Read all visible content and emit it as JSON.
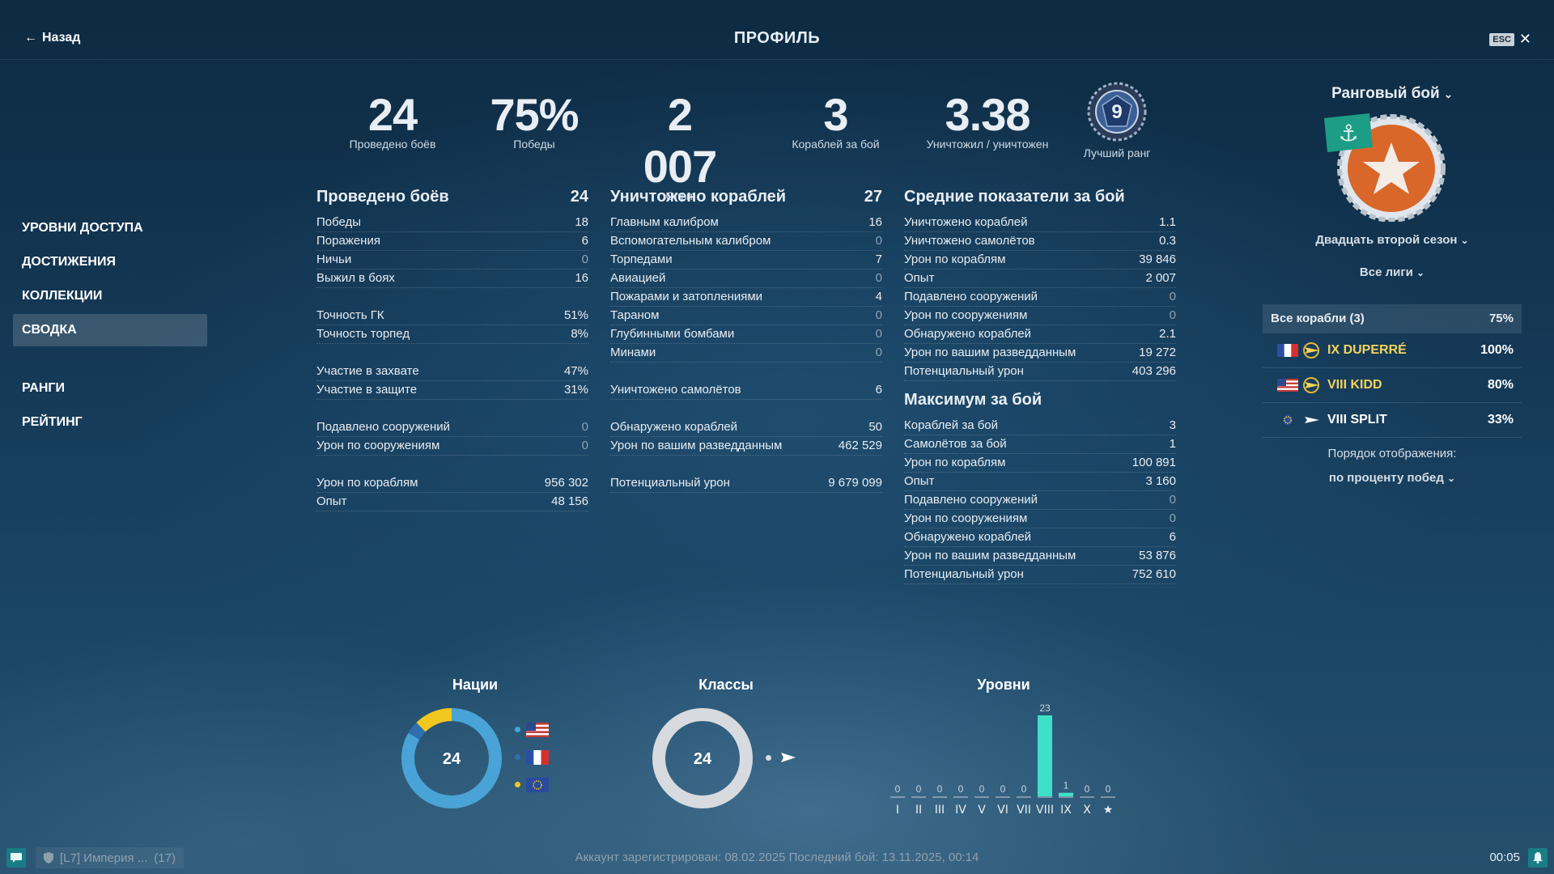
{
  "header": {
    "back_label": "Назад",
    "title": "ПРОФИЛЬ",
    "esc_label": "ESC"
  },
  "sidebar": {
    "items": [
      {
        "label": "УРОВНИ ДОСТУПА"
      },
      {
        "label": "ДОСТИЖЕНИЯ"
      },
      {
        "label": "КОЛЛЕКЦИИ"
      },
      {
        "label": "СВОДКА",
        "active": true
      },
      {
        "label": "РАНГИ"
      },
      {
        "label": "РЕЙТИНГ"
      }
    ]
  },
  "summary": [
    {
      "value": "24",
      "label": "Проведено боёв"
    },
    {
      "value": "75%",
      "label": "Победы"
    },
    {
      "value": "2 007",
      "label": "Опыт"
    },
    {
      "value": "3",
      "label": "Кораблей за бой"
    },
    {
      "value": "3.38",
      "label": "Уничтожил / уничтожен"
    }
  ],
  "best_rank": {
    "value": "9",
    "label": "Лучший ранг"
  },
  "col1": {
    "title": "Проведено боёв",
    "total": "24",
    "groups": [
      [
        [
          "Победы",
          "18"
        ],
        [
          "Поражения",
          "6"
        ],
        [
          "Ничьи",
          "0"
        ],
        [
          "Выжил в боях",
          "16"
        ]
      ],
      [
        [
          "Точность ГК",
          "51%"
        ],
        [
          "Точность торпед",
          "8%"
        ]
      ],
      [
        [
          "Участие в захвате",
          "47%"
        ],
        [
          "Участие в защите",
          "31%"
        ]
      ],
      [
        [
          "Подавлено сооружений",
          "0"
        ],
        [
          "Урон по сооружениям",
          "0"
        ]
      ],
      [
        [
          "Урон по кораблям",
          "956 302"
        ],
        [
          "Опыт",
          "48 156"
        ]
      ]
    ]
  },
  "col2": {
    "title": "Уничтожено кораблей",
    "total": "27",
    "groups": [
      [
        [
          "Главным калибром",
          "16"
        ],
        [
          "Вспомогательным калибром",
          "0"
        ],
        [
          "Торпедами",
          "7"
        ],
        [
          "Авиацией",
          "0"
        ],
        [
          "Пожарами и затоплениями",
          "4"
        ],
        [
          "Тараном",
          "0"
        ],
        [
          "Глубинными бомбами",
          "0"
        ],
        [
          "Минами",
          "0"
        ]
      ],
      [
        [
          "Уничтожено самолётов",
          "6"
        ]
      ],
      [
        [
          "Обнаружено кораблей",
          "50"
        ],
        [
          "Урон по вашим разведданным",
          "462 529"
        ]
      ],
      [
        [
          "Потенциальный урон",
          "9 679 099"
        ]
      ]
    ]
  },
  "col3": {
    "title": "Средние показатели за бой",
    "rows": [
      [
        "Уничтожено кораблей",
        "1.1"
      ],
      [
        "Уничтожено самолётов",
        "0.3"
      ],
      [
        "Урон по кораблям",
        "39 846"
      ],
      [
        "Опыт",
        "2 007"
      ],
      [
        "Подавлено сооружений",
        "0"
      ],
      [
        "Урон по сооружениям",
        "0"
      ],
      [
        "Обнаружено кораблей",
        "2.1"
      ],
      [
        "Урон по вашим разведданным",
        "19 272"
      ],
      [
        "Потенциальный урон",
        "403 296"
      ]
    ],
    "max_title": "Максимум за бой",
    "max_rows": [
      [
        "Кораблей за бой",
        "3"
      ],
      [
        "Самолётов за бой",
        "1"
      ],
      [
        "Урон по кораблям",
        "100 891"
      ],
      [
        "Опыт",
        "3 160"
      ],
      [
        "Подавлено сооружений",
        "0"
      ],
      [
        "Урон по сооружениям",
        "0"
      ],
      [
        "Обнаружено кораблей",
        "6"
      ],
      [
        "Урон по вашим разведданным",
        "53 876"
      ],
      [
        "Потенциальный урон",
        "752 610"
      ]
    ]
  },
  "right_panel": {
    "mode": "Ранговый бой",
    "season": "Двадцать второй сезон",
    "leagues": "Все лиги",
    "all_ships": {
      "label": "Все корабли (3)",
      "pct": "75%"
    },
    "ships": [
      {
        "name": "IX DUPERRÉ",
        "pct": "100%",
        "nation": "france",
        "name_color": "#f2d35a"
      },
      {
        "name": "VIII KIDD",
        "pct": "80%",
        "nation": "usa",
        "name_color": "#f2d35a"
      },
      {
        "name": "VIII SPLIT",
        "pct": "33%",
        "nation": "europe",
        "name_color": "#ffffff"
      }
    ],
    "order_label": "Порядок отображения:",
    "order_value": "по проценту побед"
  },
  "charts": {
    "nations_title": "Нации",
    "classes_title": "Классы",
    "levels_title": "Уровни",
    "nations_total": "24",
    "classes_total": "24"
  },
  "chart_data": [
    {
      "type": "pie",
      "title": "Нации",
      "center_label": "24",
      "categories": [
        "usa",
        "france",
        "europe"
      ],
      "values": [
        20,
        1,
        3
      ],
      "colors": [
        "#49a3d6",
        "#2f6fb0",
        "#f2c81e"
      ]
    },
    {
      "type": "pie",
      "title": "Классы",
      "center_label": "24",
      "categories": [
        "destroyer"
      ],
      "values": [
        24
      ],
      "colors": [
        "#d7dade"
      ]
    },
    {
      "type": "bar",
      "title": "Уровни",
      "categories": [
        "I",
        "II",
        "III",
        "IV",
        "V",
        "VI",
        "VII",
        "VIII",
        "IX",
        "X",
        "★"
      ],
      "values": [
        0,
        0,
        0,
        0,
        0,
        0,
        0,
        23,
        1,
        0,
        0
      ],
      "bar_color": "#3fe0c9"
    }
  ],
  "footer": {
    "clan": "[L7] Империя ...",
    "clan_count": "(17)",
    "account": "Аккаунт зарегистрирован: 08.02.2025  Последний бой: 13.11.2025, 00:14",
    "time": "00:05"
  }
}
